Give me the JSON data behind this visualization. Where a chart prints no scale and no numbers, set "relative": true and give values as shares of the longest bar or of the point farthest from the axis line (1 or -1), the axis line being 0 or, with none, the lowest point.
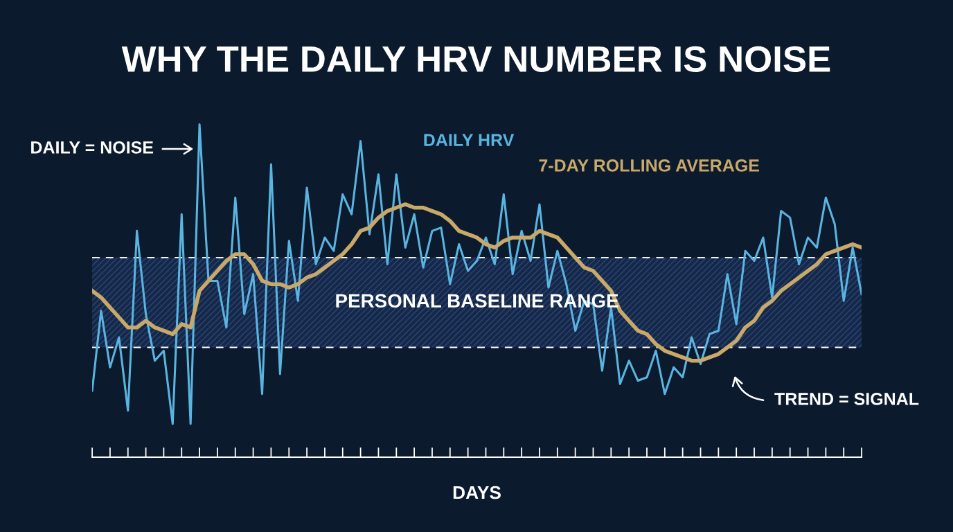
{
  "chart_data": {
    "type": "line",
    "title": "WHY THE DAILY HRV NUMBER IS NOISE",
    "xlabel": "DAYS",
    "relative": true,
    "categories": [
      null,
      null,
      null,
      null,
      null,
      null,
      null,
      null,
      null,
      null,
      null,
      null,
      null,
      null,
      null,
      null,
      null,
      null,
      null,
      null,
      null,
      null,
      null,
      null,
      null,
      null,
      null,
      null,
      null,
      null,
      null,
      null,
      null,
      null,
      null,
      null,
      null,
      null,
      null,
      null,
      null,
      null,
      null,
      null,
      null,
      null,
      null,
      null,
      null,
      null,
      null,
      null,
      null,
      null,
      null,
      null,
      null,
      null,
      null,
      null,
      null,
      null,
      null,
      null,
      null,
      null,
      null,
      null,
      null,
      null,
      null,
      null,
      null,
      null,
      null,
      null,
      null,
      null,
      null,
      null,
      null,
      null,
      null,
      null,
      null,
      null,
      null
    ],
    "series": [
      {
        "name": "DAILY HRV",
        "color": "#5ab4e0",
        "values": [
          0.2,
          0.44,
          0.27,
          0.36,
          0.14,
          0.68,
          0.43,
          0.29,
          0.32,
          0.1,
          0.73,
          0.1,
          1.0,
          0.53,
          0.53,
          0.39,
          0.78,
          0.43,
          0.55,
          0.19,
          0.88,
          0.25,
          0.65,
          0.47,
          0.81,
          0.58,
          0.66,
          0.62,
          0.79,
          0.73,
          0.95,
          0.67,
          0.85,
          0.58,
          0.85,
          0.63,
          0.73,
          0.57,
          0.68,
          0.69,
          0.52,
          0.64,
          0.56,
          0.59,
          0.66,
          0.58,
          0.79,
          0.55,
          0.68,
          0.59,
          0.76,
          0.51,
          0.62,
          0.52,
          0.38,
          0.47,
          0.46,
          0.26,
          0.45,
          0.22,
          0.29,
          0.23,
          0.24,
          0.32,
          0.19,
          0.27,
          0.24,
          0.36,
          0.28,
          0.37,
          0.38,
          0.55,
          0.4,
          0.62,
          0.59,
          0.66,
          0.48,
          0.74,
          0.72,
          0.58,
          0.66,
          0.63,
          0.78,
          0.7,
          0.47,
          0.63,
          0.49
        ]
      },
      {
        "name": "7-DAY ROLLING AVERAGE",
        "color": "#c8a96a",
        "values": [
          0.5,
          0.48,
          0.45,
          0.42,
          0.39,
          0.39,
          0.41,
          0.39,
          0.38,
          0.37,
          0.4,
          0.39,
          0.5,
          0.53,
          0.56,
          0.59,
          0.61,
          0.61,
          0.58,
          0.53,
          0.52,
          0.52,
          0.51,
          0.52,
          0.54,
          0.55,
          0.57,
          0.59,
          0.61,
          0.64,
          0.68,
          0.69,
          0.72,
          0.74,
          0.75,
          0.76,
          0.75,
          0.75,
          0.74,
          0.73,
          0.71,
          0.68,
          0.67,
          0.66,
          0.64,
          0.63,
          0.65,
          0.66,
          0.66,
          0.66,
          0.68,
          0.67,
          0.66,
          0.63,
          0.6,
          0.57,
          0.56,
          0.53,
          0.5,
          0.44,
          0.41,
          0.38,
          0.37,
          0.34,
          0.32,
          0.31,
          0.3,
          0.29,
          0.29,
          0.3,
          0.31,
          0.33,
          0.35,
          0.39,
          0.41,
          0.45,
          0.47,
          0.5,
          0.52,
          0.54,
          0.56,
          0.58,
          0.61,
          0.62,
          0.63,
          0.64,
          0.63
        ]
      }
    ],
    "bands": [
      {
        "axis": "y",
        "from": 0.33,
        "to": 0.6,
        "label": "PERSONAL BASELINE RANGE",
        "color": "#15284a"
      }
    ],
    "ref_lines": [
      {
        "axis": "y",
        "value": 0.6,
        "color": "#ffffff",
        "line_style": "dashed"
      },
      {
        "axis": "y",
        "value": 0.33,
        "color": "#ffffff",
        "line_style": "dashed"
      }
    ],
    "annotations": [
      "DAILY = NOISE",
      "TREND = SIGNAL"
    ],
    "legend": false,
    "grid": false
  }
}
